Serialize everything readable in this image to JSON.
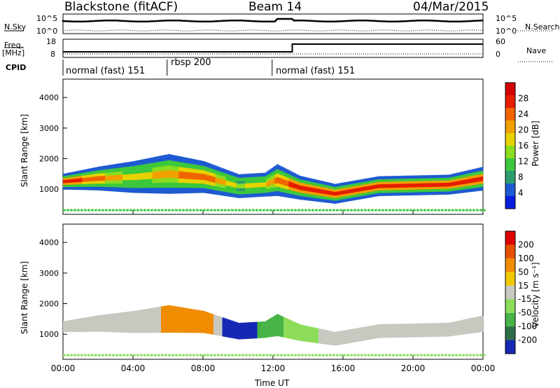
{
  "header": {
    "radar": "Blackstone (fitACF)",
    "beam": "Beam 14",
    "date": "04/Mar/2015"
  },
  "top_panels": {
    "nsky_label": "N.Sky",
    "nsearch_label": "N.Search",
    "freq_label": "Freq.",
    "freq_unit": "[MHz]",
    "nave_label": "Nave",
    "cpid_label": "CPID",
    "left_ticks_noise": [
      "10^5",
      "10^0"
    ],
    "right_ticks_noise": [
      "10^5",
      "10^0"
    ],
    "left_ticks_freq": [
      "18",
      "8"
    ],
    "right_ticks_nave": [
      "60",
      "0"
    ],
    "cpid_segments": [
      {
        "label": "normal (fast) 151"
      },
      {
        "label": "rbsp 200"
      },
      {
        "label": "normal (fast) 151"
      }
    ]
  },
  "chart_data": [
    {
      "type": "heatmap",
      "panel": "power",
      "title": "",
      "xlabel": "Time UT",
      "ylabel": "Slant Range [km]",
      "x_ticks": [
        "00:00",
        "04:00",
        "08:00",
        "12:00",
        "16:00",
        "20:00",
        "00:00"
      ],
      "xlim_hours": [
        0,
        24
      ],
      "y_ticks": [
        "1000",
        "2000",
        "3000",
        "4000"
      ],
      "ylim_km": [
        180,
        4600
      ],
      "colorbar": {
        "label": "Power [dB]",
        "ticks": [
          "4",
          "8",
          "12",
          "16",
          "20",
          "24",
          "28"
        ],
        "range": [
          0,
          30
        ],
        "colors": [
          "#0a1ee0",
          "#1e5ad2",
          "#2d9b6e",
          "#3cc83c",
          "#8cdc1e",
          "#e6d200",
          "#f0a000",
          "#f06400",
          "#e61e00",
          "#d20000"
        ]
      },
      "bands": [
        {
          "t": 0,
          "center": 1250,
          "width": 200,
          "db": 26
        },
        {
          "t": 2,
          "center": 1350,
          "width": 300,
          "db": 22
        },
        {
          "t": 4,
          "center": 1400,
          "width": 400,
          "db": 16
        },
        {
          "t": 6,
          "center": 1500,
          "width": 500,
          "db": 20
        },
        {
          "t": 8,
          "center": 1400,
          "width": 400,
          "db": 24
        },
        {
          "t": 10,
          "center": 1100,
          "width": 300,
          "db": 14
        },
        {
          "t": 11.5,
          "center": 1150,
          "width": 300,
          "db": 18
        },
        {
          "t": 12.2,
          "center": 1300,
          "width": 400,
          "db": 22
        },
        {
          "t": 13.5,
          "center": 1050,
          "width": 300,
          "db": 26
        },
        {
          "t": 15.5,
          "center": 850,
          "width": 250,
          "db": 26
        },
        {
          "t": 18,
          "center": 1100,
          "width": 250,
          "db": 24
        },
        {
          "t": 22,
          "center": 1150,
          "width": 250,
          "db": 26
        },
        {
          "t": 24,
          "center": 1350,
          "width": 300,
          "db": 26
        }
      ]
    },
    {
      "type": "heatmap",
      "panel": "velocity",
      "title": "",
      "xlabel": "Time UT",
      "ylabel": "Slant Range [km]",
      "x_ticks": [
        "00:00",
        "04:00",
        "08:00",
        "12:00",
        "16:00",
        "20:00",
        "00:00"
      ],
      "xlim_hours": [
        0,
        24
      ],
      "y_ticks": [
        "1000",
        "2000",
        "3000",
        "4000"
      ],
      "ylim_km": [
        180,
        4600
      ],
      "colorbar": {
        "label": "Velocity [m s⁻¹]",
        "ticks": [
          "200",
          "100",
          "50",
          "15",
          "-15",
          "-50",
          "-100",
          "-200"
        ],
        "range": [
          -250,
          250
        ],
        "colors": [
          "#1428b4",
          "#2d6e46",
          "#46b446",
          "#8cdc5a",
          "#c8c8c0",
          "#f0c800",
          "#f08c00",
          "#e65000",
          "#dc0000"
        ]
      }
    }
  ]
}
